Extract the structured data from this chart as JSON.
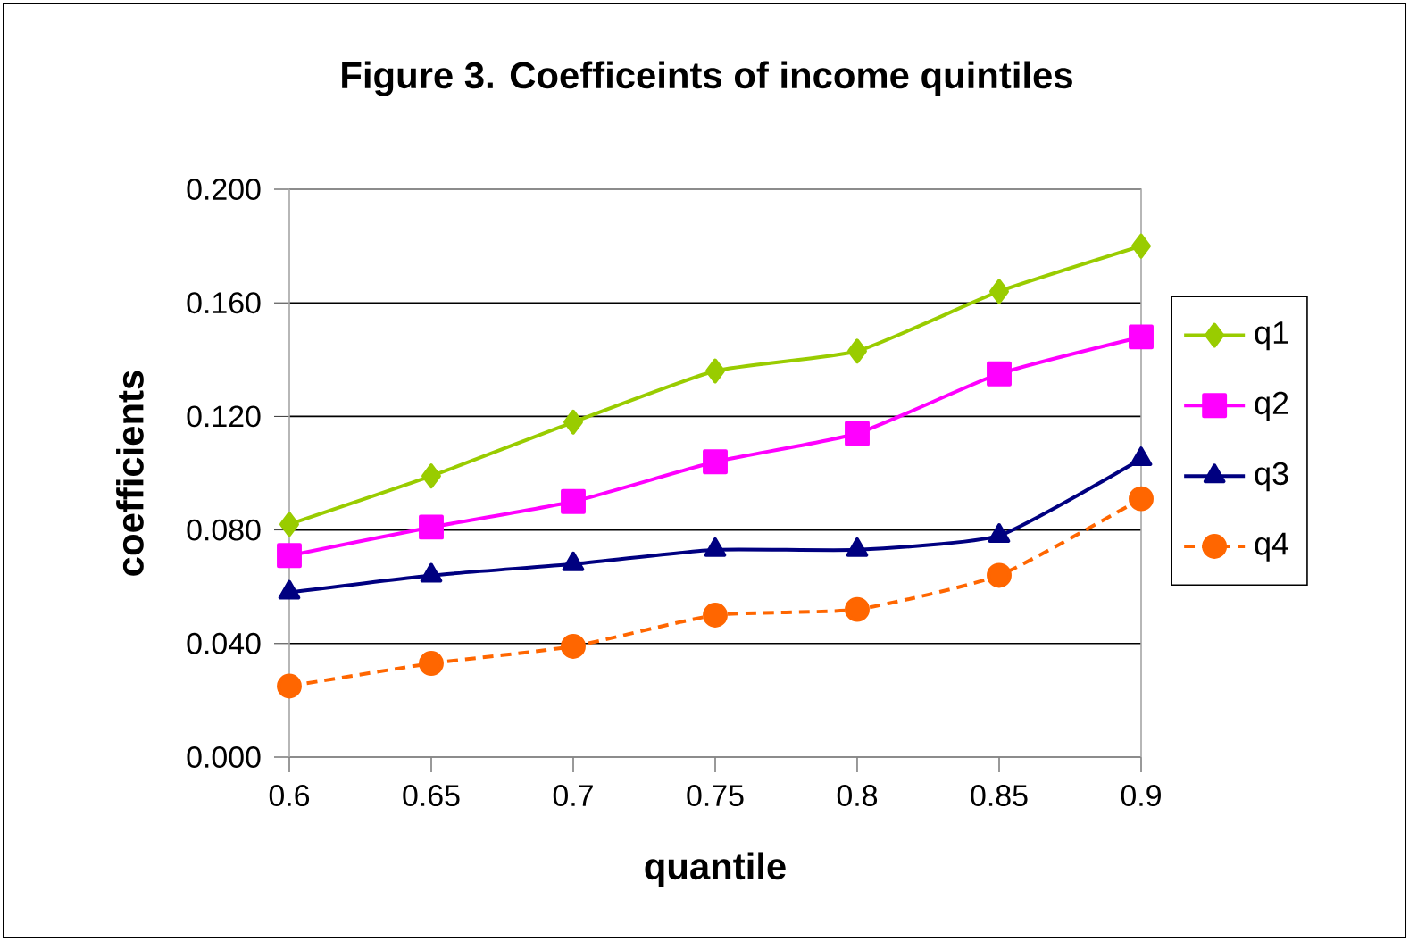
{
  "chart_data": {
    "type": "line",
    "title": "Figure 3. Coefficeints of income quintiles",
    "xlabel": "quantile",
    "ylabel": "coefficients",
    "x": [
      0.6,
      0.65,
      0.7,
      0.75,
      0.8,
      0.85,
      0.9
    ],
    "series": [
      {
        "name": "q1",
        "color": "#99cc00",
        "marker": "diamond",
        "line_style": "solid",
        "values": [
          0.082,
          0.099,
          0.118,
          0.136,
          0.143,
          0.164,
          0.18
        ]
      },
      {
        "name": "q2",
        "color": "#ff00ff",
        "marker": "square",
        "line_style": "solid",
        "values": [
          0.071,
          0.081,
          0.09,
          0.104,
          0.114,
          0.135,
          0.148
        ]
      },
      {
        "name": "q3",
        "color": "#000080",
        "marker": "triangle",
        "line_style": "solid",
        "values": [
          0.058,
          0.064,
          0.068,
          0.073,
          0.073,
          0.078,
          0.105
        ]
      },
      {
        "name": "q4",
        "color": "#ff6600",
        "marker": "circle",
        "line_style": "dashed",
        "values": [
          0.025,
          0.033,
          0.039,
          0.05,
          0.052,
          0.064,
          0.091
        ]
      }
    ],
    "xlim": [
      0.6,
      0.9
    ],
    "xticks": [
      0.6,
      0.65,
      0.7,
      0.75,
      0.8,
      0.85,
      0.9
    ],
    "ylim": [
      0,
      0.2
    ],
    "yticks": [
      {
        "value": 0,
        "label": "0.000"
      },
      {
        "value": 0.04,
        "label": "0.040"
      },
      {
        "value": 0.08,
        "label": "0.080"
      },
      {
        "value": 0.12,
        "label": "0.120"
      },
      {
        "value": 0.16,
        "label": "0.160"
      },
      {
        "value": 0.2,
        "label": "0.200"
      }
    ],
    "grid": "y",
    "legend": "right"
  }
}
